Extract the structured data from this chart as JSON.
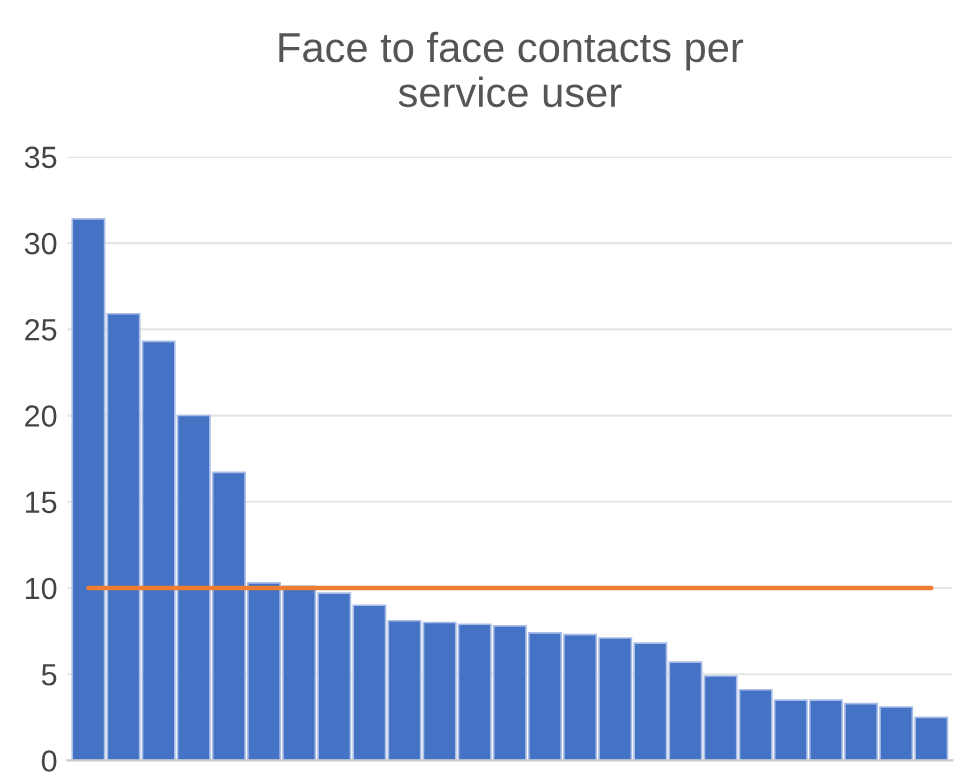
{
  "chart_data": {
    "type": "bar",
    "title": "Face to face contacts per\nservice user",
    "categories": [
      null,
      null,
      null,
      null,
      null,
      null,
      null,
      null,
      null,
      null,
      null,
      null,
      null,
      null,
      null,
      null,
      null,
      null,
      null,
      null,
      null,
      null,
      null,
      null,
      null
    ],
    "values": [
      31.4,
      25.9,
      24.3,
      20.0,
      16.7,
      10.3,
      10.1,
      9.7,
      9.0,
      8.1,
      8.0,
      7.9,
      7.8,
      7.4,
      7.3,
      7.1,
      6.8,
      5.7,
      4.9,
      4.1,
      3.5,
      3.5,
      3.3,
      3.1,
      2.5
    ],
    "color": "#4472c4",
    "ylim": [
      0,
      35
    ],
    "yticks": [
      0,
      5,
      10,
      15,
      20,
      25,
      30,
      35
    ],
    "grid": "y",
    "ref_lines": [
      {
        "axis": "y",
        "value": 10,
        "color": "#ed7d31"
      }
    ]
  }
}
